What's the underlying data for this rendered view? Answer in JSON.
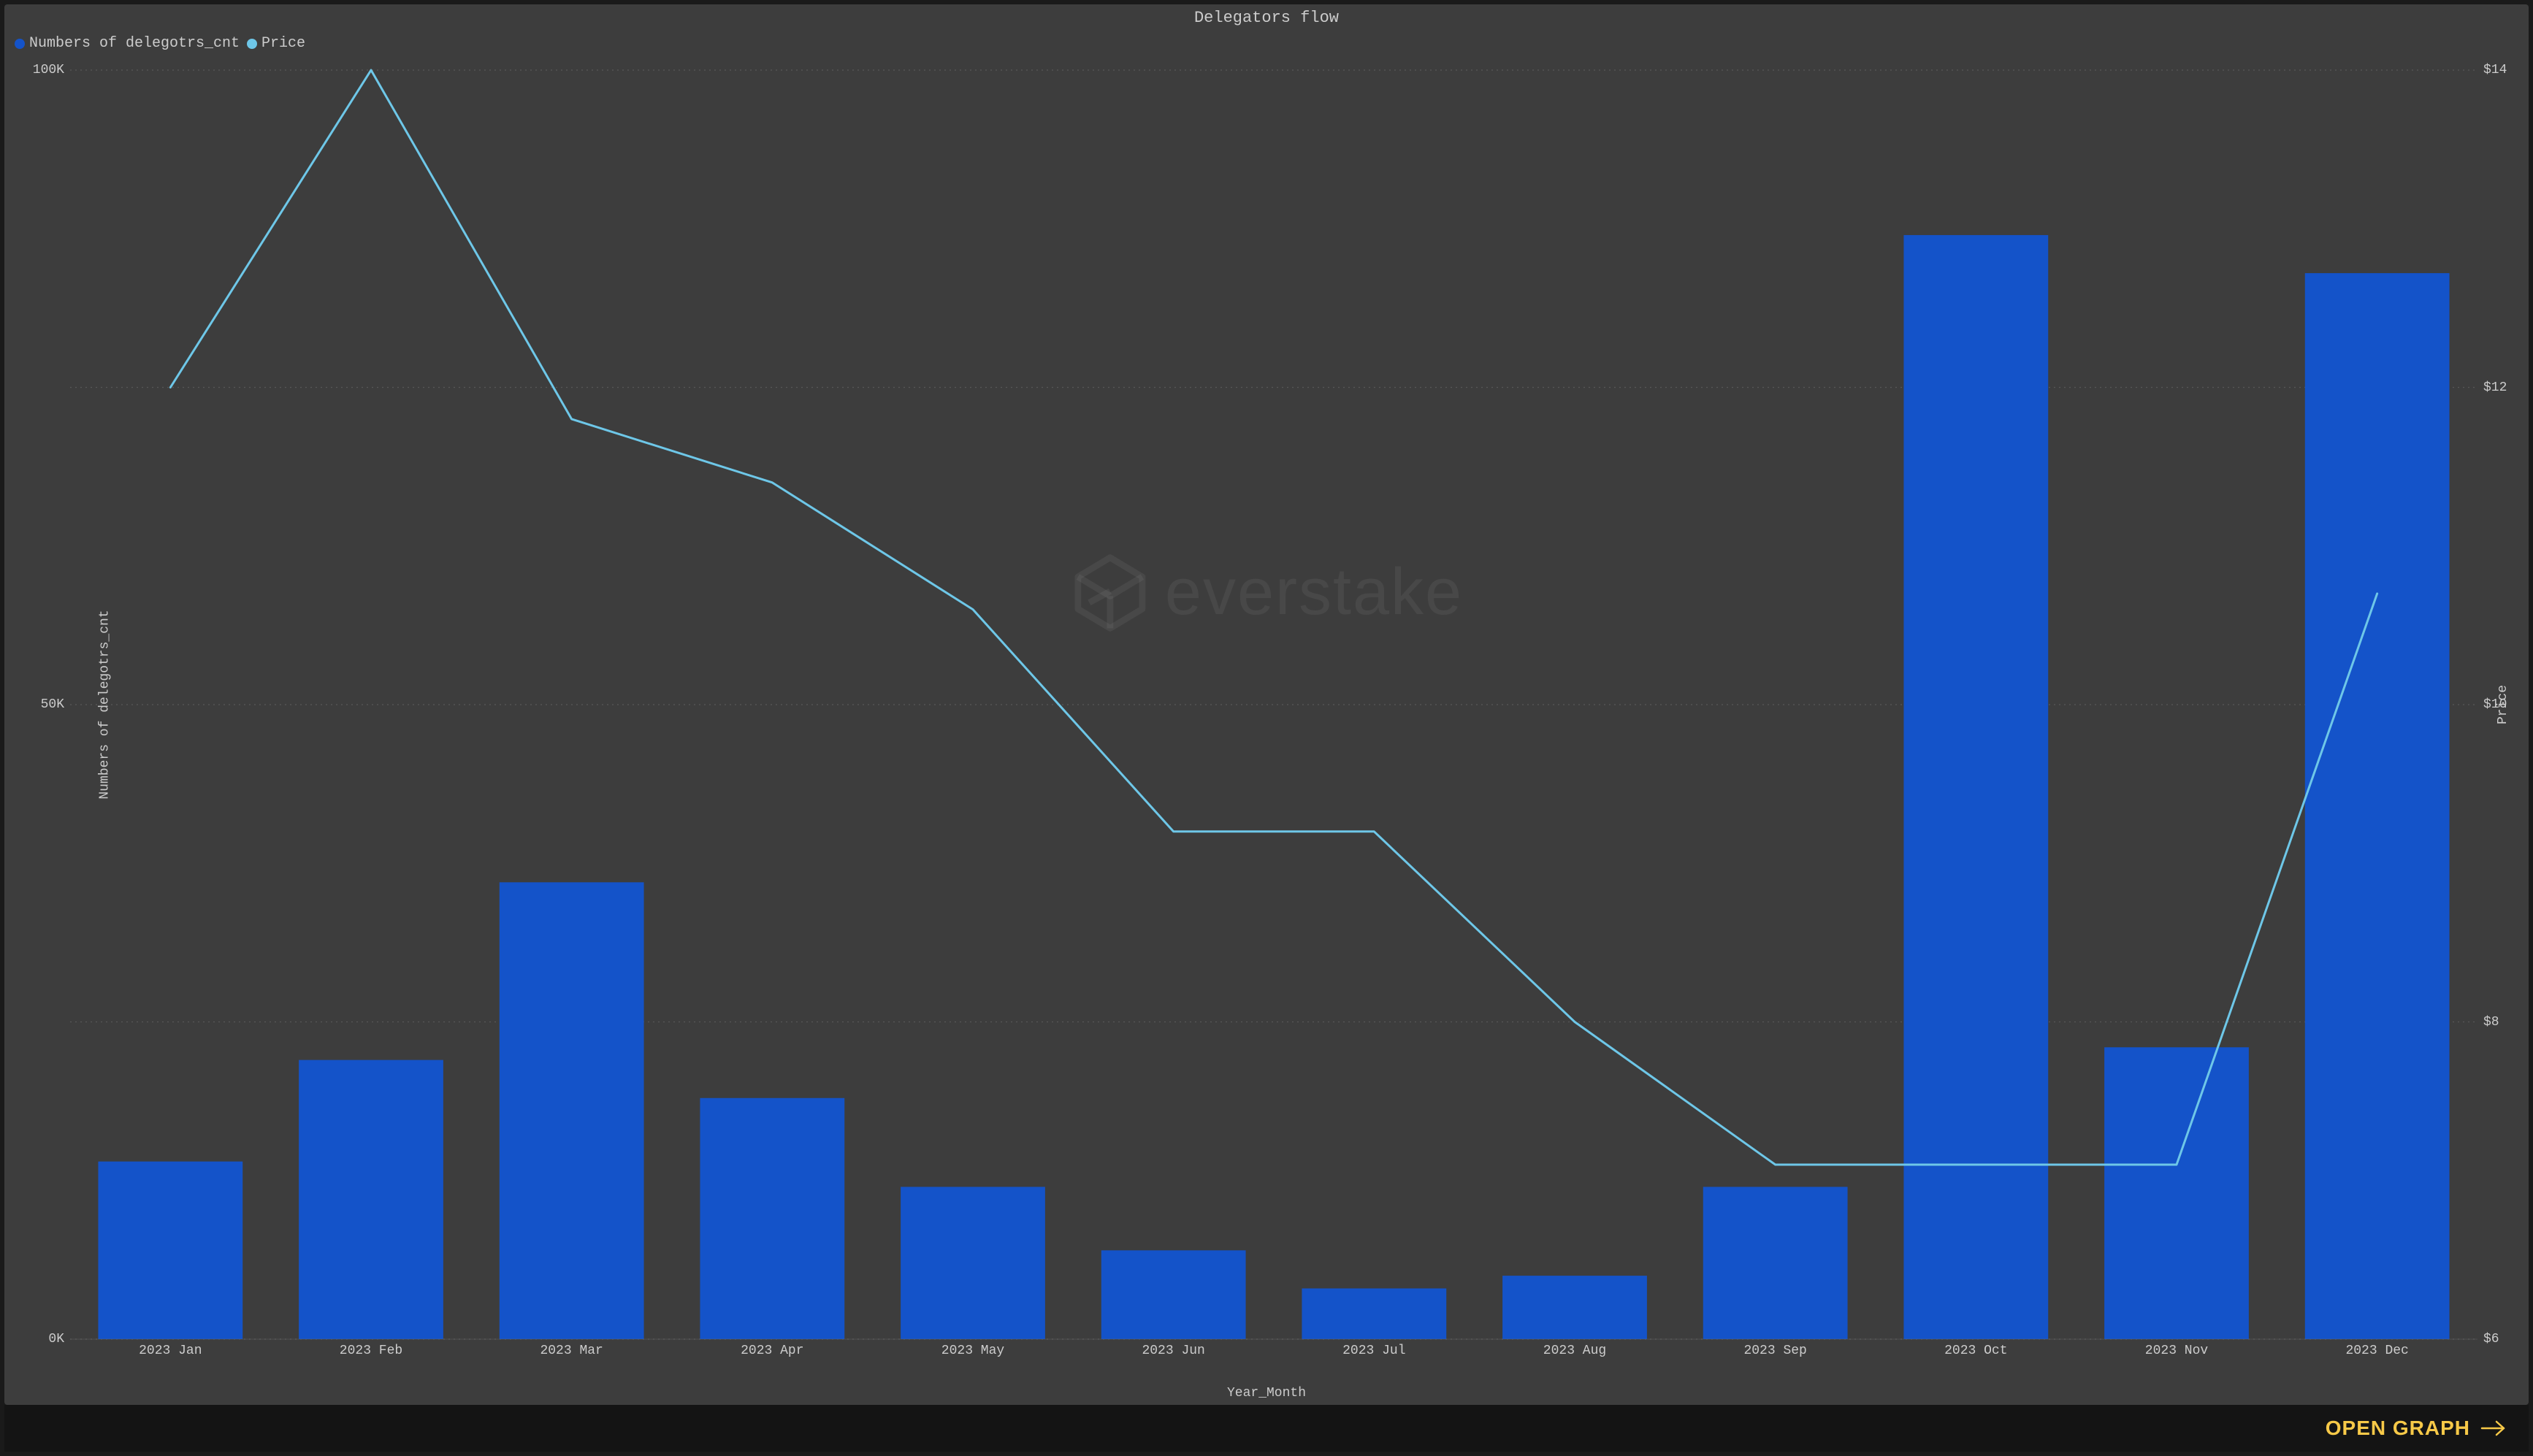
{
  "chart": {
    "title": "Delegators flow",
    "x_axis_label": "Year_Month",
    "y_left_label": "Numbers of delegotrs_cnt",
    "y_right_label": "Price",
    "background_color": "#3d3d3d",
    "grid_color": "#6a6a6a",
    "grid_dash": "2,5",
    "text_color": "#cccccc",
    "title_fontsize": 22,
    "label_fontsize": 18,
    "tick_fontsize": 18,
    "watermark_text": "everstake",
    "categories": [
      "2023 Jan",
      "2023 Feb",
      "2023 Mar",
      "2023 Apr",
      "2023 May",
      "2023 Jun",
      "2023 Jul",
      "2023 Aug",
      "2023 Sep",
      "2023 Oct",
      "2023 Nov",
      "2023 Dec"
    ],
    "bar_series": {
      "name": "Numbers of delegotrs_cnt",
      "legend_label": "Numbers of delegotrs_cnt",
      "color": "#1453c9",
      "values": [
        14000,
        22000,
        36000,
        19000,
        12000,
        7000,
        4000,
        5000,
        12000,
        87000,
        23000,
        84000
      ],
      "bar_width_ratio": 0.72
    },
    "line_series": {
      "name": "Price",
      "legend_label": "Price",
      "color": "#6ec7e8",
      "stroke_width": 3,
      "values": [
        12.0,
        14.0,
        11.8,
        11.4,
        10.6,
        9.2,
        9.2,
        8.0,
        7.1,
        7.1,
        7.1,
        10.7
      ]
    },
    "y_left": {
      "min": 0,
      "max": 100000,
      "ticks": [
        0,
        50000,
        100000
      ],
      "tick_labels": [
        "0K",
        "50K",
        "100K"
      ]
    },
    "y_right": {
      "min": 6,
      "max": 14,
      "ticks": [
        6,
        8,
        10,
        12,
        14
      ],
      "tick_labels": [
        "$6",
        "$8",
        "$10",
        "$12",
        "$14"
      ]
    }
  },
  "footer": {
    "open_graph_label": "OPEN GRAPH",
    "open_graph_color": "#f7c948"
  }
}
